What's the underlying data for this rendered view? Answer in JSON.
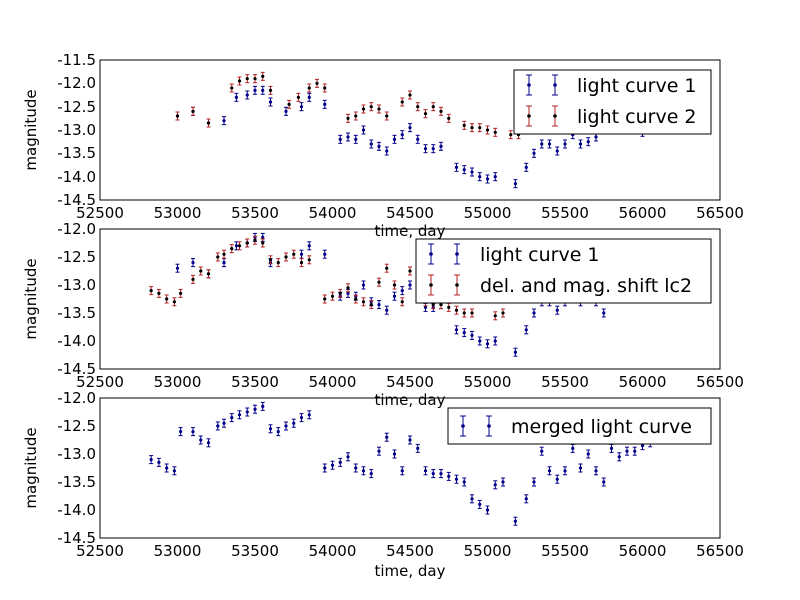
{
  "figure": {
    "x_ticks": [
      "52500",
      "53000",
      "53500",
      "54000",
      "54500",
      "55000",
      "55500",
      "56000",
      "56500"
    ]
  },
  "panels": [
    {
      "xlabel": "time, day",
      "ylabel": "magnitude",
      "y_ticks": [
        "-11.5",
        "-12.0",
        "-12.5",
        "-13.0",
        "-13.5",
        "-14.0",
        "-14.5"
      ],
      "legend": [
        "light curve 1",
        "light curve 2"
      ]
    },
    {
      "xlabel": "time, day",
      "ylabel": "magnitude",
      "y_ticks": [
        "-12.0",
        "-12.5",
        "-13.0",
        "-13.5",
        "-14.0",
        "-14.5"
      ],
      "legend": [
        "light curve 1",
        "del. and mag. shift lc2"
      ]
    },
    {
      "xlabel": "time, day",
      "ylabel": "magnitude",
      "y_ticks": [
        "-12.0",
        "-12.5",
        "-13.0",
        "-13.5",
        "-14.0",
        "-14.5"
      ],
      "legend": [
        "merged light curve"
      ]
    }
  ],
  "chart_data": [
    {
      "type": "scatter",
      "xlim": [
        52500,
        56500
      ],
      "ylim": [
        -14.5,
        -11.5
      ],
      "series": [
        {
          "name": "light curve 1",
          "color": "#00008b",
          "x": [
            53000,
            53100,
            53200,
            53300,
            53380,
            53450,
            53500,
            53550,
            53600,
            53700,
            53800,
            53850,
            53950,
            54050,
            54100,
            54150,
            54200,
            54250,
            54300,
            54350,
            54400,
            54450,
            54500,
            54550,
            54600,
            54650,
            54700,
            54800,
            54850,
            54900,
            54950,
            55000,
            55050,
            55180,
            55250,
            55300,
            55350,
            55400,
            55450,
            55500,
            55550,
            55600,
            55650,
            55700,
            55750,
            55800,
            55850,
            55900,
            55950,
            56000,
            56050,
            56100
          ],
          "y": [
            -12.7,
            -12.6,
            -12.85,
            -12.8,
            -12.3,
            -12.25,
            -12.15,
            -12.15,
            -12.4,
            -12.6,
            -12.5,
            -12.3,
            -12.45,
            -13.2,
            -13.15,
            -13.2,
            -13.0,
            -13.3,
            -13.35,
            -13.45,
            -13.2,
            -13.1,
            -12.95,
            -13.2,
            -13.4,
            -13.4,
            -13.35,
            -13.8,
            -13.85,
            -13.9,
            -14.0,
            -14.05,
            -14.0,
            -14.15,
            -13.8,
            -13.5,
            -13.3,
            -13.3,
            -13.45,
            -13.3,
            -13.1,
            -13.3,
            -13.25,
            -13.15,
            -13.0,
            -12.9,
            -12.95,
            -12.95,
            -12.95,
            -13.05,
            -12.95,
            -12.8
          ]
        },
        {
          "name": "light curve 2",
          "color": "#b22222",
          "x": [
            53000,
            53100,
            53200,
            53350,
            53400,
            53450,
            53500,
            53550,
            53600,
            53720,
            53780,
            53850,
            53900,
            53950,
            54100,
            54150,
            54200,
            54250,
            54300,
            54350,
            54450,
            54500,
            54550,
            54600,
            54650,
            54700,
            54750,
            54850,
            54900,
            54950,
            55000,
            55050,
            55150,
            55200,
            55250,
            55300,
            55350,
            55400
          ],
          "y": [
            -12.7,
            -12.6,
            -12.85,
            -12.1,
            -11.95,
            -11.9,
            -11.9,
            -11.85,
            -12.15,
            -12.45,
            -12.3,
            -12.1,
            -12.0,
            -12.1,
            -12.75,
            -12.7,
            -12.55,
            -12.5,
            -12.55,
            -12.7,
            -12.4,
            -12.25,
            -12.5,
            -12.65,
            -12.5,
            -12.6,
            -12.75,
            -12.9,
            -12.95,
            -12.95,
            -13.0,
            -13.05,
            -13.1,
            -13.1,
            -12.95,
            -12.9,
            -12.85,
            -12.8
          ]
        }
      ]
    },
    {
      "type": "scatter",
      "xlim": [
        52500,
        56500
      ],
      "ylim": [
        -14.5,
        -12.0
      ],
      "series": [
        {
          "name": "light curve 1",
          "color": "#00008b",
          "x": [
            53000,
            53100,
            53200,
            53300,
            53380,
            53450,
            53500,
            53550,
            53600,
            53700,
            53800,
            53850,
            53950,
            54050,
            54100,
            54150,
            54200,
            54250,
            54300,
            54350,
            54400,
            54450,
            54500,
            54550,
            54600,
            54650,
            54700,
            54800,
            54850,
            54900,
            54950,
            55000,
            55050,
            55180,
            55250,
            55300,
            55350,
            55400,
            55450,
            55500,
            55550,
            55600,
            55650,
            55700,
            55750
          ],
          "y": [
            -12.7,
            -12.6,
            -12.8,
            -12.6,
            -12.3,
            -12.25,
            -12.15,
            -12.15,
            -12.6,
            -12.5,
            -12.45,
            -12.3,
            -12.45,
            -13.2,
            -13.15,
            -13.2,
            -13.0,
            -13.3,
            -13.35,
            -13.45,
            -13.2,
            -13.1,
            -13.0,
            -13.2,
            -13.4,
            -13.4,
            -13.35,
            -13.8,
            -13.85,
            -13.9,
            -14.0,
            -14.05,
            -14.0,
            -14.2,
            -13.8,
            -13.5,
            -13.3,
            -13.3,
            -13.45,
            -13.3,
            -13.1,
            -13.3,
            -13.25,
            -13.3,
            -13.5
          ]
        },
        {
          "name": "del. and mag. shift lc2",
          "color": "#b22222",
          "x": [
            52830,
            52880,
            52930,
            52980,
            53020,
            53100,
            53150,
            53200,
            53260,
            53300,
            53350,
            53400,
            53450,
            53500,
            53550,
            53600,
            53650,
            53700,
            53750,
            53800,
            53850,
            53950,
            54000,
            54050,
            54100,
            54150,
            54200,
            54250,
            54300,
            54350,
            54400,
            54450,
            54500,
            54550,
            54600,
            54650,
            54700,
            54750,
            54800,
            54850,
            54900,
            55050,
            55100
          ],
          "y": [
            -13.1,
            -13.15,
            -13.25,
            -13.3,
            -13.15,
            -12.9,
            -12.75,
            -12.8,
            -12.5,
            -12.45,
            -12.35,
            -12.3,
            -12.25,
            -12.2,
            -12.25,
            -12.55,
            -12.6,
            -12.5,
            -12.45,
            -12.6,
            -12.55,
            -13.25,
            -13.2,
            -13.15,
            -13.05,
            -13.25,
            -13.3,
            -13.35,
            -12.95,
            -12.7,
            -13.0,
            -13.3,
            -12.75,
            -12.9,
            -13.3,
            -13.35,
            -13.35,
            -13.4,
            -13.45,
            -13.5,
            -13.5,
            -13.55,
            -13.5
          ]
        }
      ]
    },
    {
      "type": "scatter",
      "xlim": [
        52500,
        56500
      ],
      "ylim": [
        -14.5,
        -12.0
      ],
      "series": [
        {
          "name": "merged light curve",
          "color": "#00008b",
          "x": [
            52830,
            52880,
            52930,
            52980,
            53020,
            53100,
            53150,
            53200,
            53260,
            53300,
            53350,
            53400,
            53450,
            53500,
            53550,
            53600,
            53650,
            53700,
            53750,
            53800,
            53850,
            53950,
            54000,
            54050,
            54100,
            54150,
            54200,
            54250,
            54300,
            54350,
            54400,
            54450,
            54500,
            54550,
            54600,
            54650,
            54700,
            54750,
            54800,
            54850,
            54900,
            54950,
            55000,
            55050,
            55100,
            55180,
            55250,
            55300,
            55350,
            55400,
            55450,
            55500,
            55550,
            55600,
            55650,
            55700,
            55750,
            55800,
            55850,
            55900,
            55950,
            56000,
            56050
          ],
          "y": [
            -13.1,
            -13.15,
            -13.25,
            -13.3,
            -12.6,
            -12.6,
            -12.75,
            -12.8,
            -12.5,
            -12.45,
            -12.35,
            -12.3,
            -12.25,
            -12.2,
            -12.15,
            -12.55,
            -12.6,
            -12.5,
            -12.45,
            -12.35,
            -12.3,
            -13.25,
            -13.2,
            -13.15,
            -13.05,
            -13.25,
            -13.3,
            -13.35,
            -12.95,
            -12.7,
            -13.0,
            -13.3,
            -12.75,
            -12.9,
            -13.3,
            -13.35,
            -13.35,
            -13.4,
            -13.45,
            -13.5,
            -13.8,
            -13.9,
            -14.0,
            -13.55,
            -13.5,
            -14.2,
            -13.8,
            -13.5,
            -12.95,
            -13.3,
            -13.45,
            -13.3,
            -12.9,
            -13.25,
            -13.0,
            -13.3,
            -13.5,
            -12.9,
            -13.05,
            -12.95,
            -12.95,
            -12.85,
            -12.8
          ]
        }
      ]
    }
  ]
}
